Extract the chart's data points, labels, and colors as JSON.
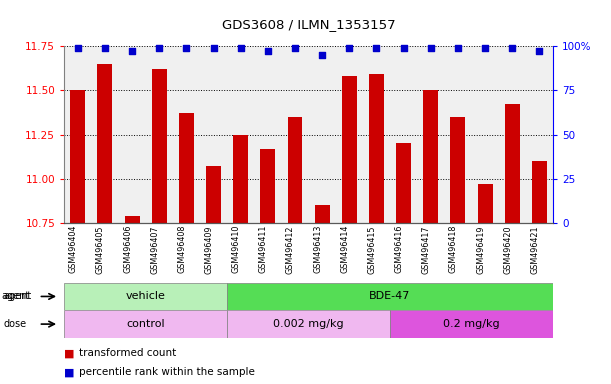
{
  "title": "GDS3608 / ILMN_1353157",
  "samples": [
    "GSM496404",
    "GSM496405",
    "GSM496406",
    "GSM496407",
    "GSM496408",
    "GSM496409",
    "GSM496410",
    "GSM496411",
    "GSM496412",
    "GSM496413",
    "GSM496414",
    "GSM496415",
    "GSM496416",
    "GSM496417",
    "GSM496418",
    "GSM496419",
    "GSM496420",
    "GSM496421"
  ],
  "bar_values": [
    11.5,
    11.65,
    10.79,
    11.62,
    11.37,
    11.07,
    11.25,
    11.17,
    11.35,
    10.85,
    11.58,
    11.59,
    11.2,
    11.5,
    11.35,
    10.97,
    11.42,
    11.1
  ],
  "dot_values": [
    99,
    99,
    97,
    99,
    99,
    99,
    99,
    97,
    99,
    95,
    99,
    99,
    99,
    99,
    99,
    99,
    99,
    97
  ],
  "ymin": 10.75,
  "ymax": 11.75,
  "yticks": [
    10.75,
    11.0,
    11.25,
    11.5,
    11.75
  ],
  "right_yticks": [
    0,
    25,
    50,
    75,
    100
  ],
  "bar_color": "#cc0000",
  "dot_color": "#0000cc",
  "agent_labels": [
    "vehicle",
    "BDE-47"
  ],
  "agent_color_light": "#b8f0b8",
  "agent_color_dark": "#55dd55",
  "dose_labels": [
    "control",
    "0.002 mg/kg",
    "0.2 mg/kg"
  ],
  "dose_color_light": "#f0b8f0",
  "dose_color_dark": "#dd55dd",
  "legend_red": "transformed count",
  "legend_blue": "percentile rank within the sample",
  "background_color": "#ffffff",
  "chart_bg": "#f0f0f0"
}
